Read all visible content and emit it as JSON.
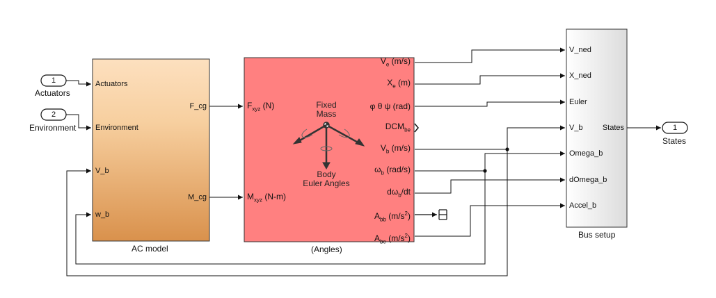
{
  "inports": [
    {
      "number": "1",
      "label": "Actuators"
    },
    {
      "number": "2",
      "label": "Environment"
    }
  ],
  "outport": {
    "number": "1",
    "label": "States"
  },
  "ac_model": {
    "caption": "AC model",
    "inputs": [
      "Actuators",
      "Environment",
      "V_b",
      "w_b"
    ],
    "outputs": [
      "F_cg",
      "M_cg"
    ],
    "color": "#f5c08a"
  },
  "angles_block": {
    "caption": "(Angles)",
    "color": "#ff8080",
    "center_top": "Fixed",
    "center_top2": "Mass",
    "center_bottom": "Body",
    "center_bottom2": "Euler Angles",
    "in_f": {
      "main": "F",
      "sub": "xyz",
      "rest": " (N)"
    },
    "in_m": {
      "main": "M",
      "sub": "xyz",
      "rest": " (N-m)"
    },
    "out_ve": {
      "main": "V",
      "sub": "e",
      "rest": " (m/s)"
    },
    "out_xe": {
      "main": "X",
      "sub": "e",
      "rest": " (m)"
    },
    "out_euler": "φ θ ψ (rad)",
    "out_dcm": {
      "main": "DCM",
      "sub": "be"
    },
    "out_vb": {
      "main": "V",
      "sub": "b",
      "rest": " (m/s)"
    },
    "out_wb": {
      "main": "ω",
      "sub": "b",
      "rest": " (rad/s)"
    },
    "out_dwb": {
      "pre": "dω",
      "sub": "b",
      "rest": "/dt"
    },
    "out_abb": {
      "main": "A",
      "sub": "bb",
      "rest": " (m/s",
      "sup": "2",
      "end": ")"
    },
    "out_abe": {
      "main": "A",
      "sub": "be",
      "rest": " (m/s",
      "sup": "2",
      "end": ")"
    }
  },
  "bus_setup": {
    "caption": "Bus setup",
    "inputs": [
      "V_ned",
      "X_ned",
      "Euler",
      "V_b",
      "Omega_b",
      "dOmega_b",
      "Accel_b"
    ],
    "output": "States"
  }
}
